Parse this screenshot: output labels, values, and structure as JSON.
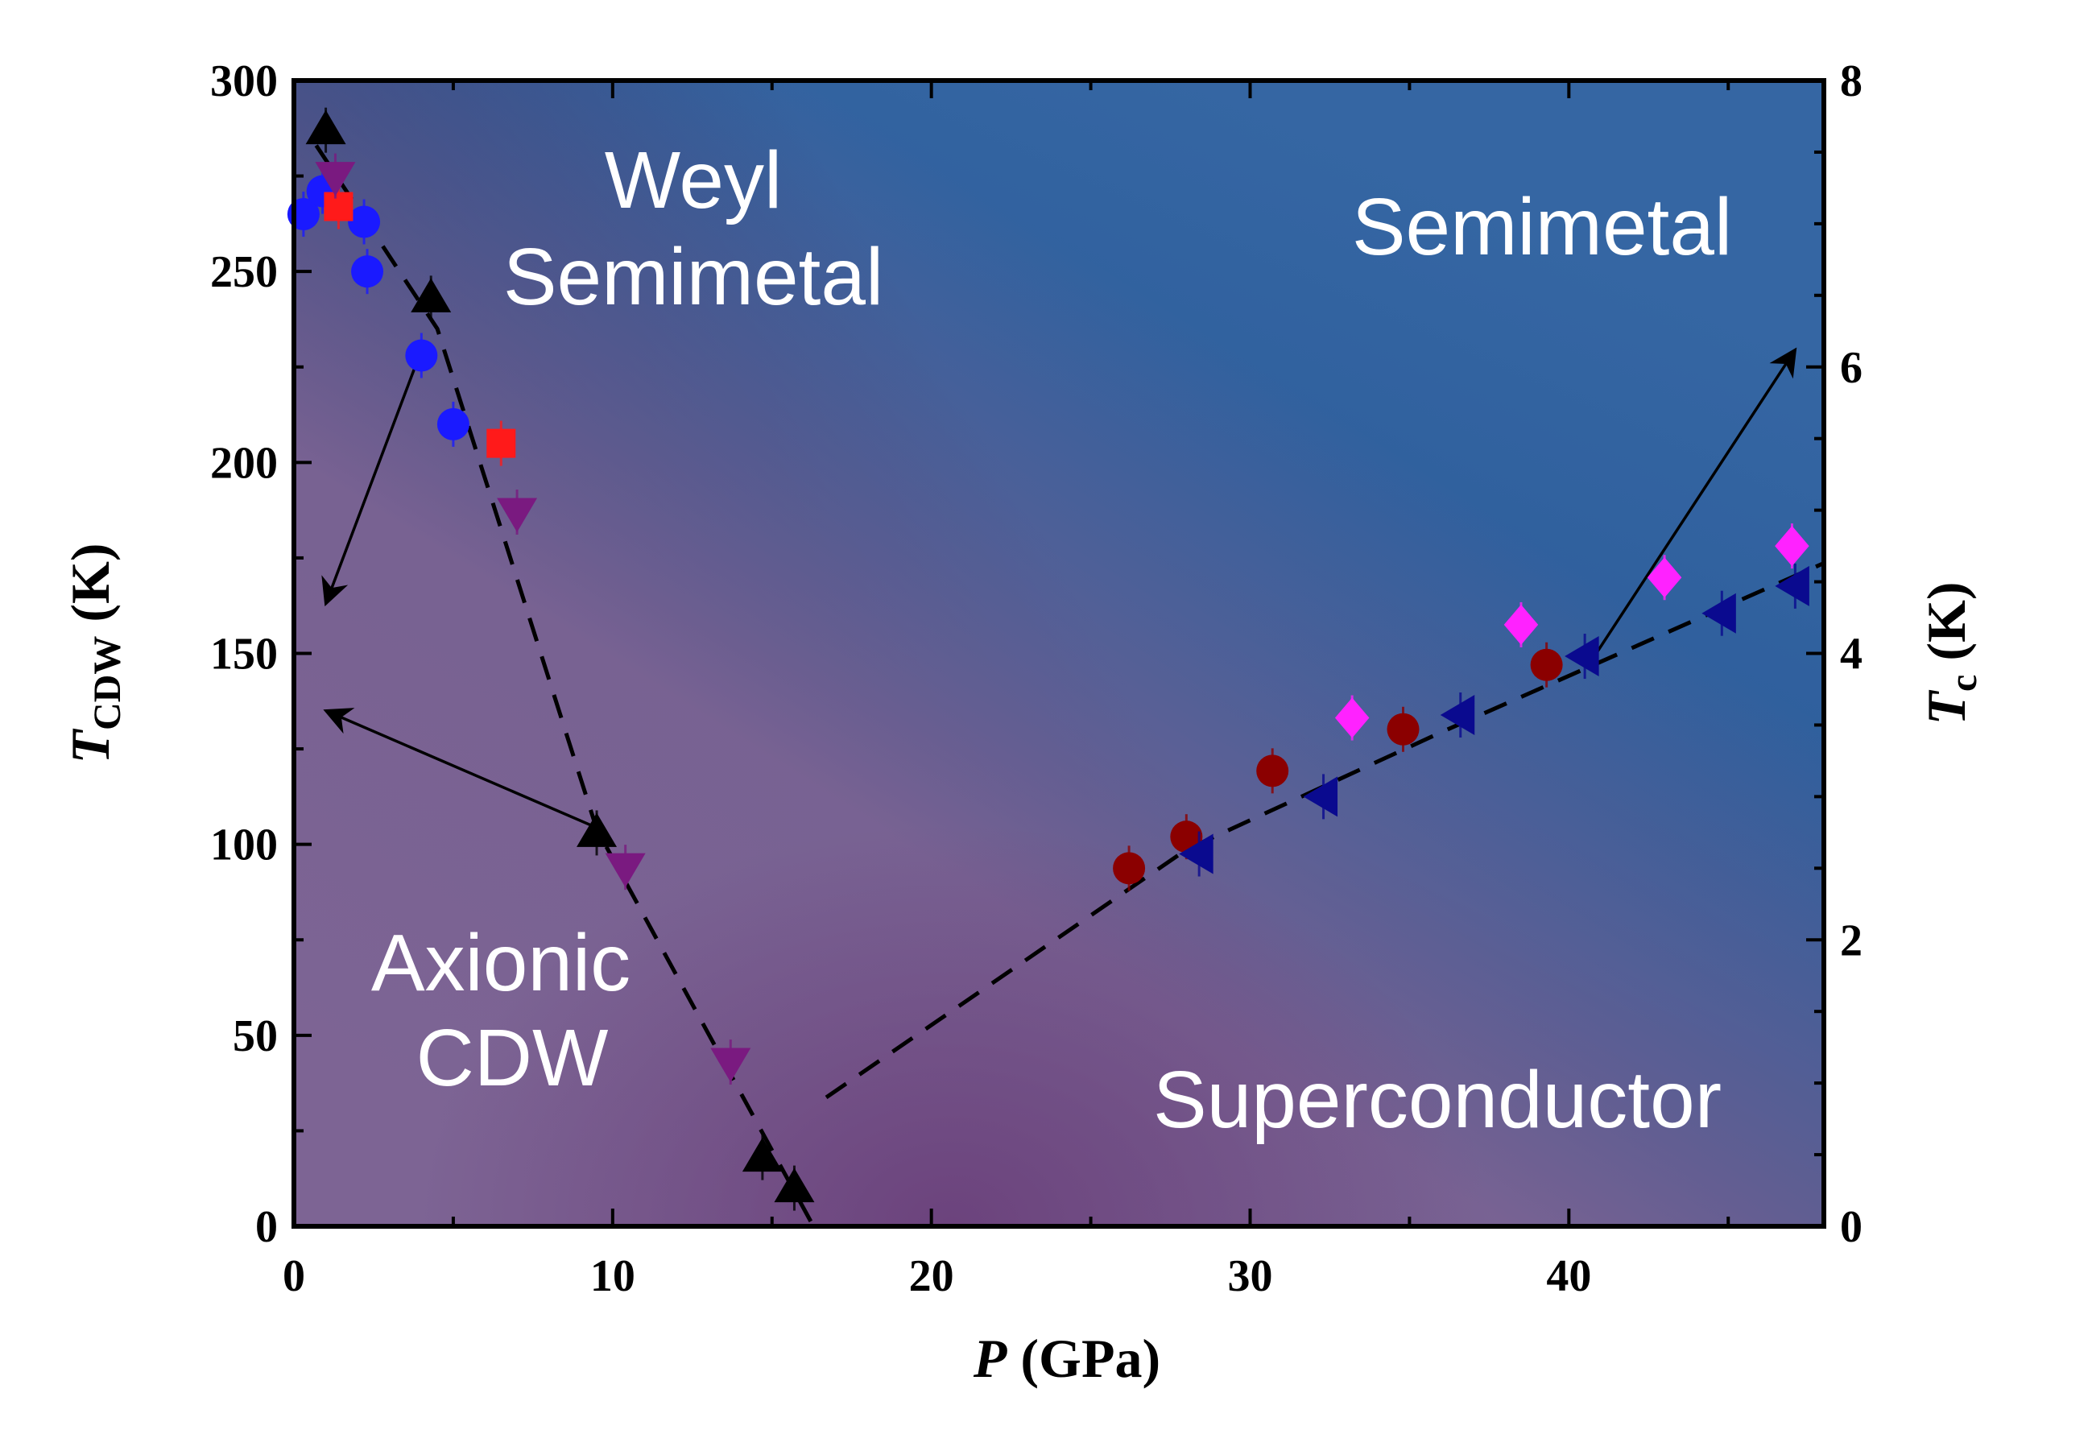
{
  "chart_data": {
    "type": "scatter",
    "xlabel": {
      "italic": "P",
      "rest": " (GPa)"
    },
    "ylabel_left": {
      "italic": "T",
      "sub": "CDW",
      "rest": " (K)"
    },
    "ylabel_right": {
      "italic": "T",
      "sub": "c",
      "rest": " (K)"
    },
    "xlim": [
      0,
      48
    ],
    "ylim_left": [
      0,
      300
    ],
    "ylim_right": [
      0,
      8
    ],
    "x_ticks": [
      0,
      10,
      20,
      30,
      40
    ],
    "y_left_ticks": [
      0,
      50,
      100,
      150,
      200,
      250,
      300
    ],
    "y_right_ticks": [
      0,
      2,
      4,
      6,
      8
    ],
    "grid": false,
    "legend": "none",
    "background_colors": {
      "cdw_region": "#0f2d66",
      "weyl_region": "#3566a3",
      "superconductor_region": "#7d6494",
      "minimum_glow": "#6a3f7a"
    },
    "region_labels": [
      {
        "id": "weyl",
        "lines": [
          "Weyl",
          "Semimetal"
        ]
      },
      {
        "id": "semimetal",
        "lines": [
          "Semimetal"
        ]
      },
      {
        "id": "axionic",
        "lines": [
          "Axionic",
          "CDW"
        ]
      },
      {
        "id": "superconductor",
        "lines": [
          "Superconductor"
        ]
      }
    ],
    "cdw_series": [
      {
        "marker": "circle",
        "color": "#1a1aff",
        "axis": "left",
        "points": [
          [
            0.3,
            265
          ],
          [
            0.9,
            271
          ],
          [
            2.2,
            263
          ],
          [
            2.3,
            250
          ],
          [
            4.0,
            228
          ],
          [
            5.0,
            210
          ]
        ]
      },
      {
        "marker": "square",
        "color": "#ff1a1a",
        "axis": "left",
        "points": [
          [
            1.4,
            267
          ],
          [
            6.5,
            205
          ]
        ]
      },
      {
        "marker": "triangle-up",
        "color": "#000000",
        "axis": "left",
        "points": [
          [
            1.0,
            287
          ],
          [
            4.3,
            243
          ],
          [
            9.5,
            103
          ],
          [
            14.7,
            18
          ],
          [
            15.7,
            10
          ]
        ]
      },
      {
        "marker": "triangle-down",
        "color": "#7a1a80",
        "axis": "left",
        "points": [
          [
            1.3,
            275
          ],
          [
            7.0,
            187
          ],
          [
            10.4,
            94
          ],
          [
            13.7,
            43
          ]
        ]
      }
    ],
    "tc_series": [
      {
        "marker": "circle",
        "color": "#8b0000",
        "axis": "right",
        "points": [
          [
            26.2,
            2.5
          ],
          [
            28.0,
            2.72
          ],
          [
            30.7,
            3.18
          ],
          [
            34.8,
            3.47
          ],
          [
            39.3,
            3.92
          ]
        ]
      },
      {
        "marker": "triangle-left",
        "color": "#0a0a8f",
        "axis": "right",
        "points": [
          [
            28.4,
            2.6
          ],
          [
            32.3,
            3.0
          ],
          [
            36.6,
            3.57
          ],
          [
            40.5,
            3.98
          ],
          [
            44.8,
            4.28
          ],
          [
            47.1,
            4.47
          ]
        ]
      },
      {
        "marker": "diamond",
        "color": "#ff22ff",
        "axis": "right",
        "points": [
          [
            33.2,
            3.55
          ],
          [
            38.5,
            4.2
          ],
          [
            43.0,
            4.53
          ],
          [
            47.0,
            4.75
          ]
        ]
      }
    ],
    "guide_lines": [
      {
        "axis": "left",
        "style": "dashed",
        "points": [
          [
            0.7,
            283
          ],
          [
            4.5,
            235
          ],
          [
            9.5,
            104
          ],
          [
            16.3,
            0
          ]
        ]
      },
      {
        "axis": "right",
        "style": "dashed",
        "points": [
          [
            16.7,
            0.9
          ],
          [
            28,
            2.63
          ],
          [
            36,
            3.45
          ],
          [
            48,
            4.63
          ]
        ]
      }
    ],
    "arrows": [
      {
        "from": {
          "axis": "left",
          "point": [
            3.8,
            225
          ]
        },
        "to": {
          "axis": "left",
          "point": [
            1.0,
            163
          ]
        }
      },
      {
        "from": {
          "axis": "left",
          "point": [
            9.6,
            104
          ]
        },
        "to": {
          "axis": "left",
          "point": [
            1.0,
            135
          ]
        }
      },
      {
        "from": {
          "axis": "right",
          "point": [
            40.8,
            3.98
          ]
        },
        "to": {
          "axis": "right",
          "point": [
            47.1,
            6.12
          ]
        }
      }
    ]
  }
}
